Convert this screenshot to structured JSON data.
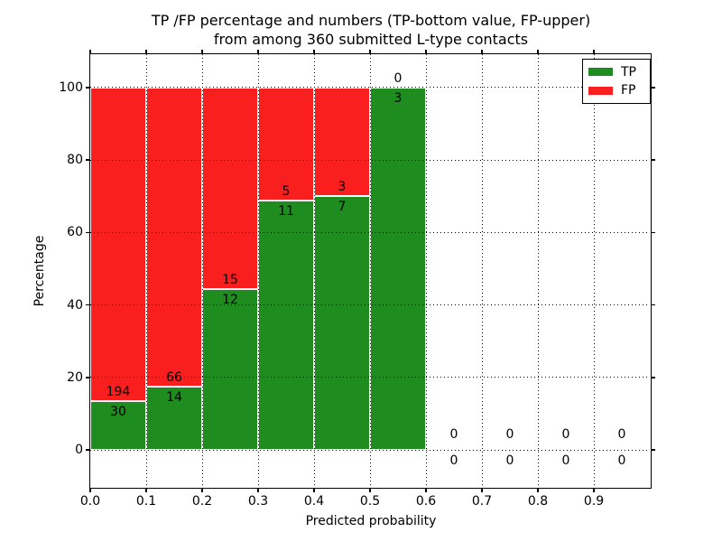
{
  "figure": {
    "title_line1": "TP /FP percentage and numbers (TP-bottom value, FP-upper)",
    "title_line2": "from among 360 submitted L-type contacts",
    "background": "#ffffff"
  },
  "legend": {
    "position": "upper right",
    "items": [
      {
        "label": "TP",
        "color": "#1e8c1e"
      },
      {
        "label": "FP",
        "color": "#fa1f1f"
      }
    ]
  },
  "chart_data": {
    "type": "bar",
    "stacked": true,
    "title": "TP /FP percentage and numbers (TP-bottom value, FP-upper) from among 360 submitted L-type contacts",
    "xlabel": "Predicted probability",
    "ylabel": "Percentage",
    "xlim": [
      0.0,
      1.0
    ],
    "ylim": [
      -10.2,
      109.2
    ],
    "grid": true,
    "legend_position": "upper right",
    "bin_width": 0.1,
    "bin_starts": [
      0.0,
      0.1,
      0.2,
      0.3,
      0.4,
      0.5,
      0.6,
      0.7,
      0.8,
      0.9
    ],
    "x_tick_labels": [
      "0.0",
      "0.1",
      "0.2",
      "0.3",
      "0.4",
      "0.5",
      "0.6",
      "0.7",
      "0.8",
      "0.9"
    ],
    "y_tick_values": [
      0,
      20,
      40,
      60,
      80,
      100
    ],
    "series": [
      {
        "name": "TP",
        "color": "#1e8c1e",
        "counts": [
          30,
          14,
          12,
          11,
          7,
          3,
          0,
          0,
          0,
          0
        ]
      },
      {
        "name": "FP",
        "color": "#fa1f1f",
        "counts": [
          194,
          66,
          15,
          5,
          3,
          0,
          0,
          0,
          0,
          0
        ]
      }
    ],
    "tp_percent_of_bin": [
      13.39,
      17.5,
      44.44,
      68.75,
      70.0,
      100.0,
      null,
      null,
      null,
      null
    ],
    "total_submitted": 360
  }
}
